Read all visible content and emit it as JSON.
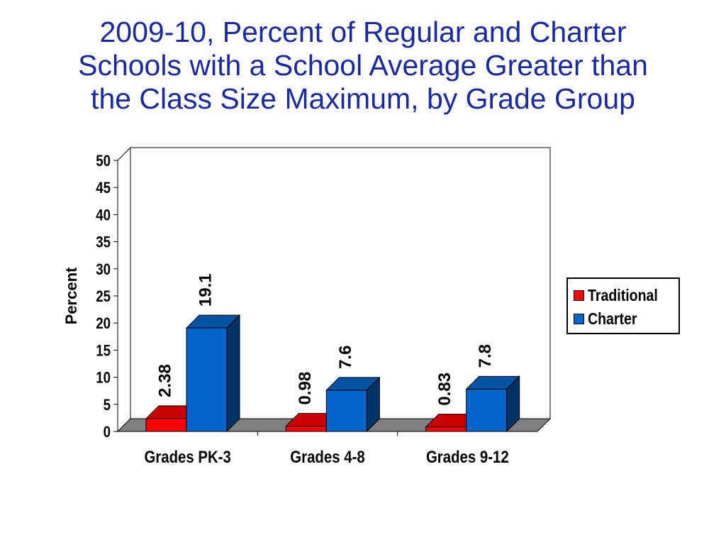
{
  "title_lines": [
    "2009-10, Percent of Regular and Charter",
    "Schools with a School Average Greater than",
    "the Class Size Maximum, by Grade Group"
  ],
  "chart_data": {
    "type": "bar",
    "style": "3d-clustered-column",
    "title": "2009-10, Percent of Regular and Charter Schools with a School Average Greater than the Class Size Maximum, by Grade Group",
    "categories": [
      "Grades PK-3",
      "Grades 4-8",
      "Grades 9-12"
    ],
    "series": [
      {
        "name": "Traditional",
        "color": "#ff0000",
        "values": [
          2.38,
          0.98,
          0.83
        ],
        "labels": [
          "2.38",
          "0.98",
          "0.83"
        ]
      },
      {
        "name": "Charter",
        "color": "#0066cc",
        "values": [
          19.1,
          7.6,
          7.8
        ],
        "labels": [
          "19.1",
          "7.6",
          "7.8"
        ]
      }
    ],
    "xlabel": "",
    "ylabel": "Percent",
    "ylim": [
      0,
      50
    ],
    "yticks": [
      "0",
      "5",
      "10",
      "15",
      "20",
      "25",
      "30",
      "35",
      "40",
      "45",
      "50"
    ],
    "grid": false,
    "legend_position": "right"
  }
}
